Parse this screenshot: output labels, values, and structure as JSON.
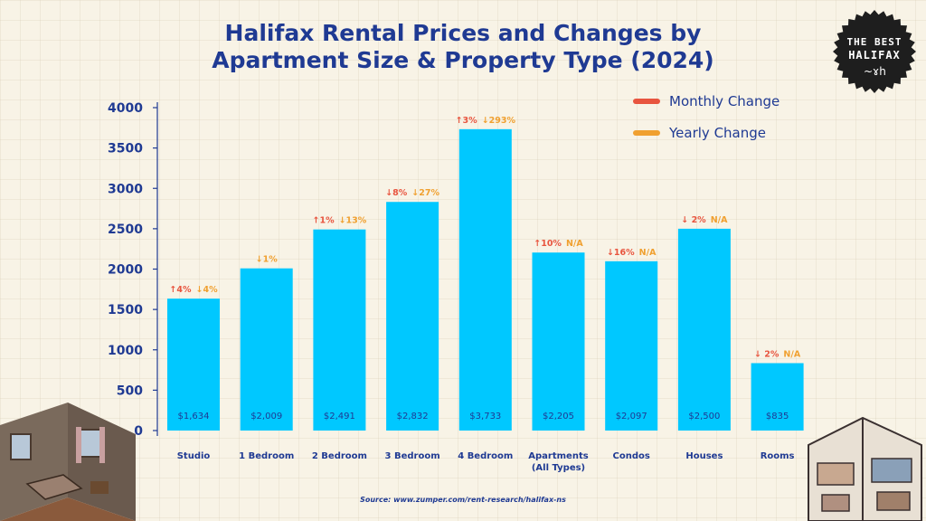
{
  "title_line1": "Halifax Rental Prices and Changes by",
  "title_line2": "Apartment Size & Property Type (2024)",
  "badge": {
    "line1": "THE BEST",
    "line2": "HALIFAX",
    "signature": "~ɤh"
  },
  "source": "Source: www.zumper.com/rent-research/halifax-ns",
  "colors": {
    "bar": "#00c8ff",
    "title": "#1f3a93",
    "monthly_change": "#e8553f",
    "yearly_change": "#f0a030",
    "badge": "#1e1e1e"
  },
  "chart_data": {
    "type": "bar",
    "title": "Halifax Rental Prices and Changes by Apartment Size & Property Type (2024)",
    "categories": [
      "Studio",
      "1 Bedroom",
      "2 Bedroom",
      "3 Bedroom",
      "4 Bedroom",
      "Apartments (All Types)",
      "Condos",
      "Houses",
      "Rooms"
    ],
    "category_lines": [
      [
        "Studio"
      ],
      [
        "1 Bedroom"
      ],
      [
        "2 Bedroom"
      ],
      [
        "3 Bedroom"
      ],
      [
        "4 Bedroom"
      ],
      [
        "Apartments",
        "(All Types)"
      ],
      [
        "Condos"
      ],
      [
        "Houses"
      ],
      [
        "Rooms"
      ]
    ],
    "values": [
      1634,
      2009,
      2491,
      2832,
      3733,
      2205,
      2097,
      2500,
      835
    ],
    "value_labels": [
      "$1,634",
      "$2,009",
      "$2,491",
      "$2,832",
      "$3,733",
      "$2,205",
      "$2,097",
      "$2,500",
      "$835"
    ],
    "monthly_change": [
      "↑4%",
      "",
      "↑1%",
      "↓8%",
      "↑3%",
      "↑10%",
      "↓16%",
      "↓ 2%",
      "↓ 2%"
    ],
    "yearly_change": [
      "↓4%",
      "↓1%",
      "↓13%",
      "↓27%",
      "↓293%",
      "N/A",
      "N/A",
      "N/A",
      "N/A"
    ],
    "ylim": [
      0,
      4000
    ],
    "yticks": [
      0,
      500,
      1000,
      1500,
      2000,
      2500,
      3000,
      3500,
      4000
    ],
    "xlabel": "",
    "ylabel": "",
    "grid": false,
    "legend": {
      "position": "top-right",
      "entries": [
        "Monthly Change",
        "Yearly Change"
      ]
    }
  }
}
